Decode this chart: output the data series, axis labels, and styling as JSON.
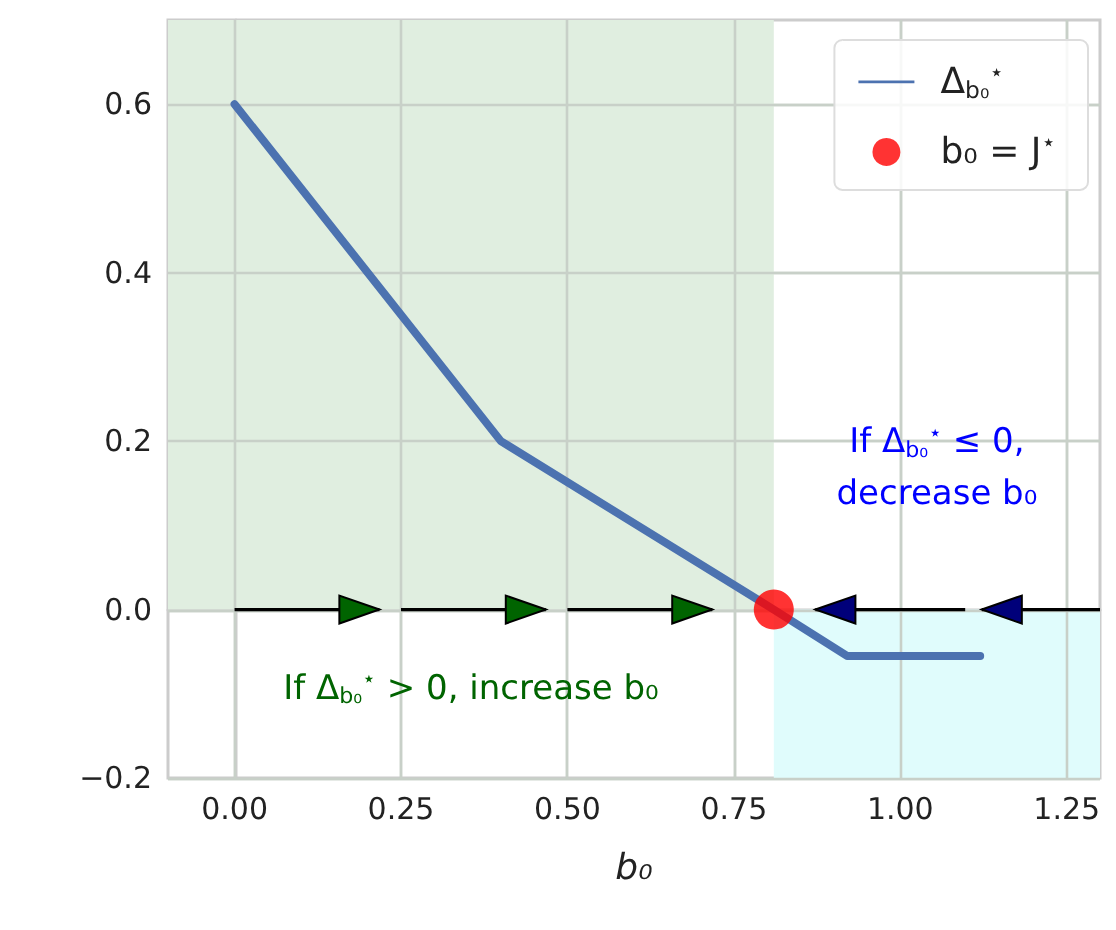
{
  "chart_data": {
    "type": "line",
    "xlabel": "b₀",
    "x": [
      0,
      0.4,
      0.81,
      0.92,
      1.12
    ],
    "series": [
      {
        "name": "Δ$_{b₀}$$^{⋆}$",
        "color": "#4c72b0",
        "values": [
          0.6,
          0.2,
          0,
          -0.055,
          -0.055
        ],
        "marker": "none"
      },
      {
        "name": "b₀ = J$^{⋆}$",
        "type": "scatter",
        "color": "#ff0000",
        "x": [
          0.81
        ],
        "values": [
          0
        ],
        "marker": "circle"
      }
    ],
    "xlim": [
      -0.1,
      1.3
    ],
    "ylim": [
      -0.2,
      0.7
    ],
    "xticks": [
      {
        "value": 0,
        "label": "0.00"
      },
      {
        "value": 0.25,
        "label": "0.25"
      },
      {
        "value": 0.5,
        "label": "0.50"
      },
      {
        "value": 0.75,
        "label": "0.75"
      },
      {
        "value": 1,
        "label": "1.00"
      },
      {
        "value": 1.25,
        "label": "1.25"
      }
    ],
    "yticks": [
      {
        "value": -0.2,
        "label": "−0.2"
      },
      {
        "value": 0,
        "label": "0.0"
      },
      {
        "value": 0.2,
        "label": "0.2"
      },
      {
        "value": 0.4,
        "label": "0.4"
      },
      {
        "value": 0.6,
        "label": "0.6"
      }
    ],
    "bands": [
      {
        "axis": "x",
        "from": -0.1,
        "to": 0.81,
        "color": "#e0eee0"
      },
      {
        "axis": "x",
        "from": 0.81,
        "to": 1.3,
        "color": "#e0fcfc"
      }
    ],
    "annotations": [
      "If Δ$_{b₀}$$^{⋆}$ ≤ 0,\ndecrease b₀",
      "If Δ$_{b₀}$$^{⋆}$ > 0, increase b₀"
    ],
    "grid": true,
    "legend": "top right"
  }
}
